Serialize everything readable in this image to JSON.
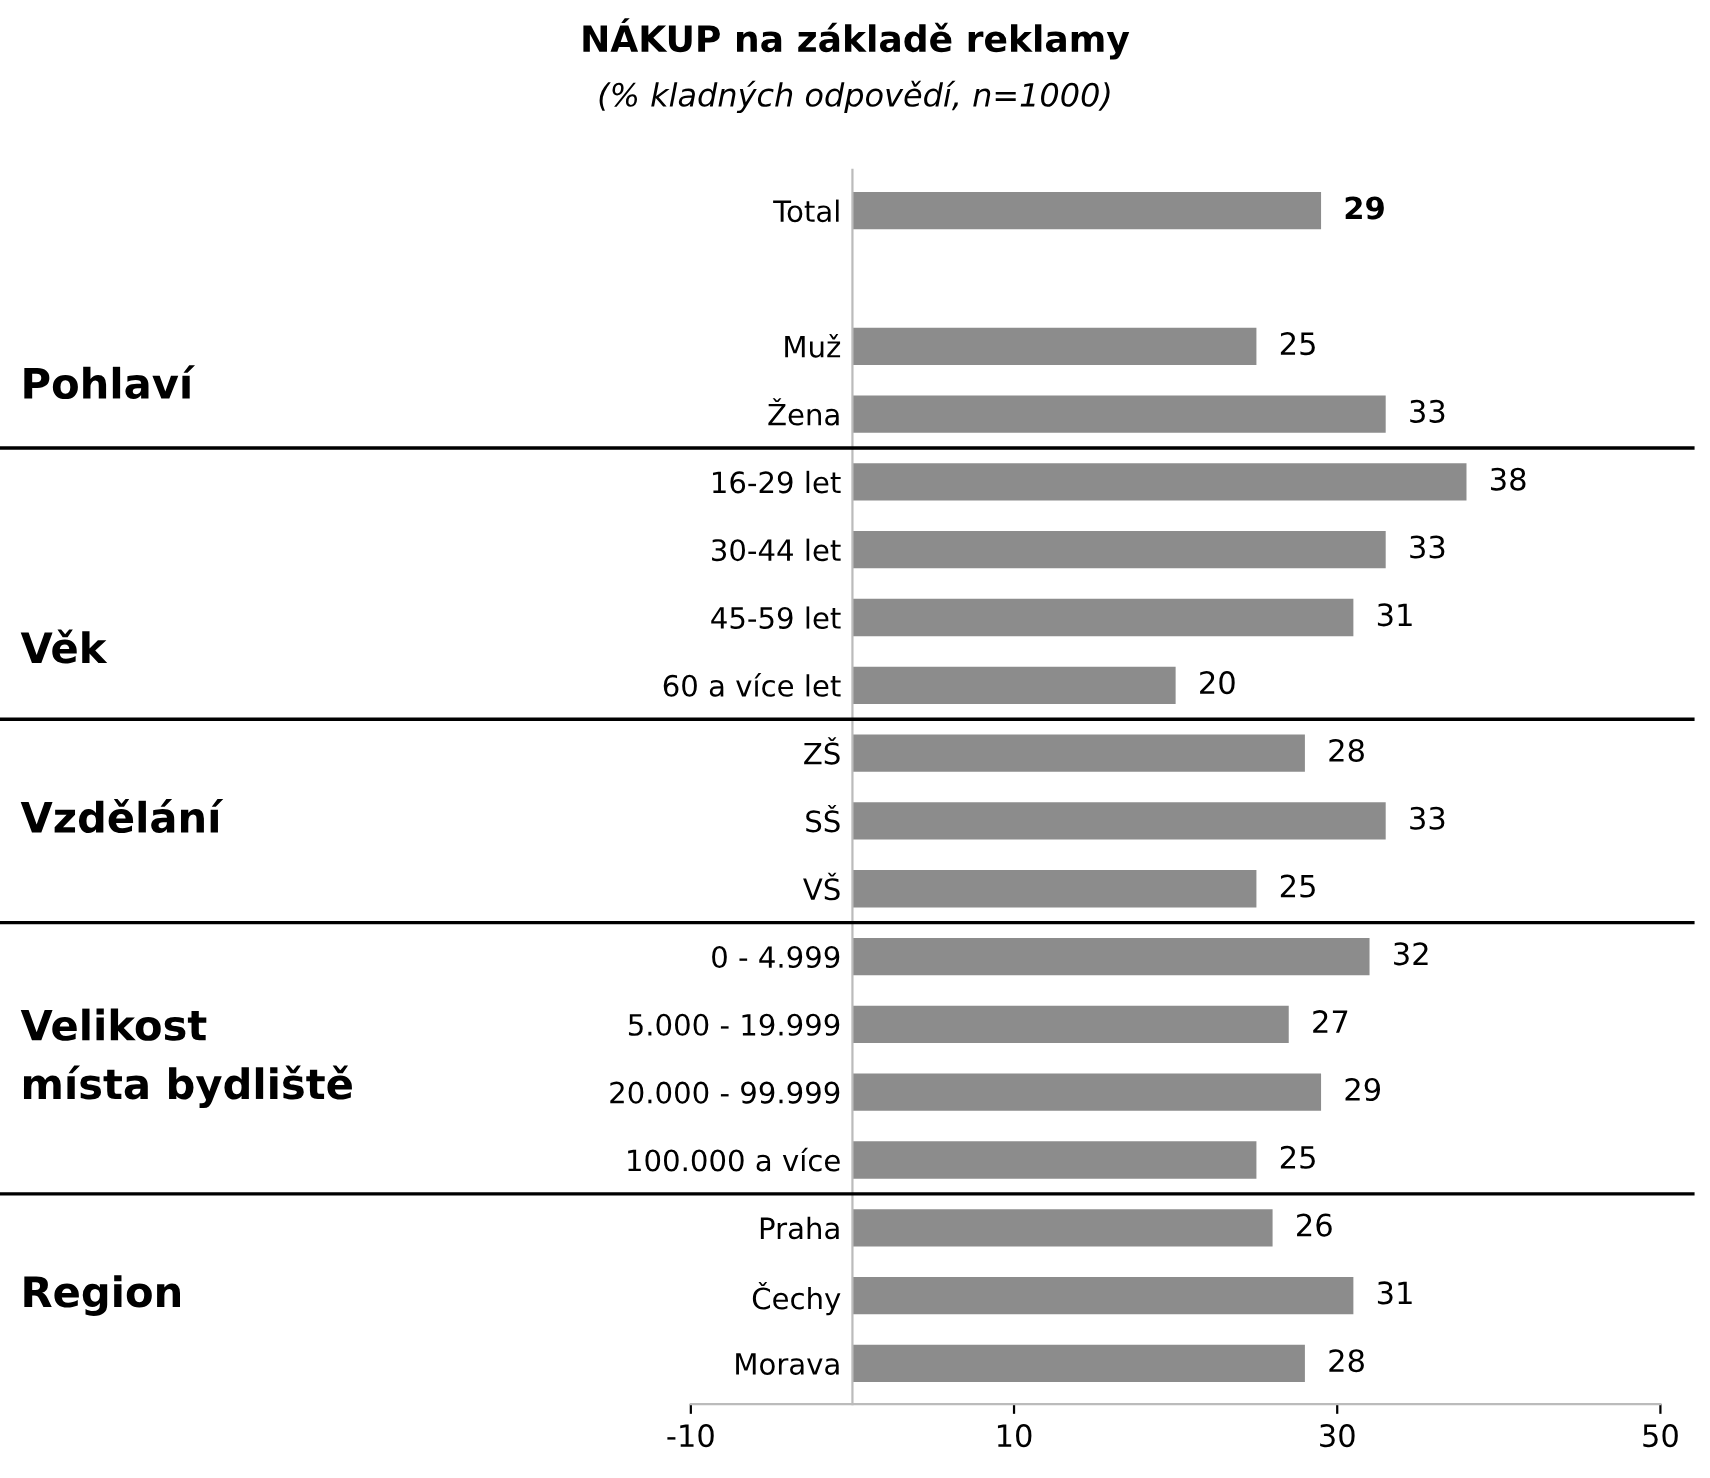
{
  "chart_data": {
    "type": "bar",
    "orientation": "horizontal",
    "title": "NÁKUP na základě reklamy",
    "subtitle": "(% kladných odpovědí, n=1000)",
    "categories": [
      "Total",
      null,
      "Muž",
      "Žena",
      "16-29 let",
      "30-44 let",
      "45-59 let",
      "60 a více let",
      "ZŠ",
      "SŠ",
      "VŠ",
      "0 - 4.999",
      "5.000 - 19.999",
      "20.000 - 99.999",
      "100.000 a více",
      "Praha",
      "Čechy",
      "Morava"
    ],
    "values": [
      29,
      null,
      25,
      33,
      38,
      33,
      31,
      20,
      28,
      33,
      25,
      32,
      27,
      29,
      25,
      26,
      31,
      28
    ],
    "color": "#8c8c8c",
    "xlim": [
      -10,
      50
    ],
    "xticks": [
      -10,
      10,
      30,
      50
    ],
    "data_labels": true,
    "grid": false,
    "legend": false,
    "annotations": [
      "Pohlaví",
      "Věk",
      "Vzdělání",
      "Velikost\nmísta bydliště",
      "Region"
    ]
  }
}
